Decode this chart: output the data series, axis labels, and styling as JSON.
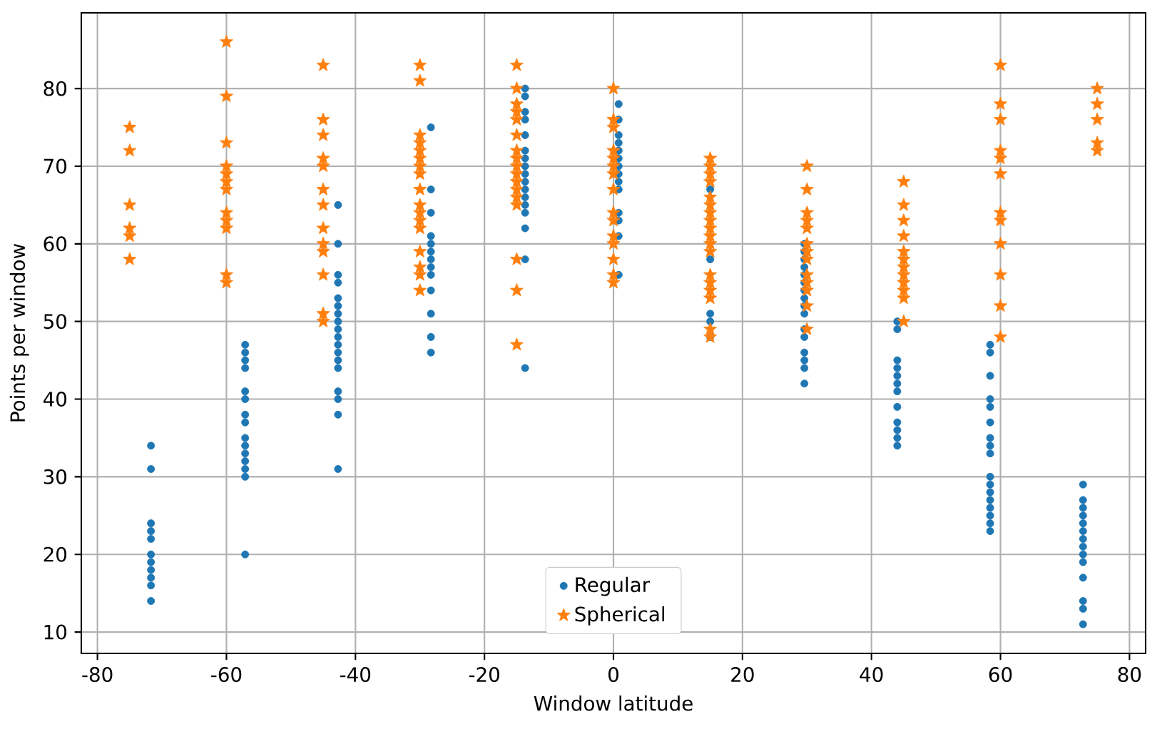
{
  "chart_data": {
    "type": "scatter",
    "xlabel": "Window latitude",
    "ylabel": "Points per window",
    "xlim": [
      -82.5,
      82.5
    ],
    "ylim": [
      7.25,
      89.75
    ],
    "xticks": [
      -80,
      -60,
      -40,
      -20,
      0,
      20,
      40,
      60,
      80
    ],
    "yticks": [
      10,
      20,
      30,
      40,
      50,
      60,
      70,
      80
    ],
    "grid": true,
    "legend": "bottom",
    "series": [
      {
        "name": "Regular",
        "color": "#1f77b4",
        "marker": "circle",
        "x": [
          -71.7,
          -71.7,
          -71.7,
          -71.7,
          -71.7,
          -71.7,
          -71.7,
          -71.7,
          -71.7,
          -71.7,
          -71.7,
          -57.1,
          -57.1,
          -57.1,
          -57.1,
          -57.1,
          -57.1,
          -57.1,
          -57.1,
          -57.1,
          -57.1,
          -57.1,
          -57.1,
          -57.1,
          -57.1,
          -57.1,
          -42.7,
          -42.7,
          -42.7,
          -42.7,
          -42.7,
          -42.7,
          -42.7,
          -42.7,
          -42.7,
          -42.7,
          -42.7,
          -42.7,
          -42.7,
          -42.7,
          -42.7,
          -42.7,
          -42.7,
          -42.7,
          -28.3,
          -28.3,
          -28.3,
          -28.3,
          -28.3,
          -28.3,
          -28.3,
          -28.3,
          -28.3,
          -28.3,
          -28.3,
          -28.3,
          -28.3,
          -13.7,
          -13.7,
          -13.7,
          -13.7,
          -13.7,
          -13.7,
          -13.7,
          -13.7,
          -13.7,
          -13.7,
          -13.7,
          -13.7,
          -13.7,
          -13.7,
          -13.7,
          -13.7,
          -13.7,
          0.8,
          0.8,
          0.8,
          0.8,
          0.8,
          0.8,
          0.8,
          0.8,
          0.8,
          0.8,
          0.8,
          0.8,
          0.8,
          0.8,
          15.0,
          15.0,
          15.0,
          15.0,
          15.0,
          29.6,
          29.6,
          29.6,
          29.6,
          29.6,
          29.6,
          29.6,
          29.6,
          29.6,
          29.6,
          29.6,
          29.6,
          29.6,
          29.6,
          29.6,
          29.6,
          44.0,
          44.0,
          44.0,
          44.0,
          44.0,
          44.0,
          44.0,
          44.0,
          44.0,
          44.0,
          44.0,
          44.0,
          58.4,
          58.4,
          58.4,
          58.4,
          58.4,
          58.4,
          58.4,
          58.4,
          58.4,
          58.4,
          58.4,
          58.4,
          58.4,
          58.4,
          58.4,
          58.4,
          58.4,
          72.8,
          72.8,
          72.8,
          72.8,
          72.8,
          72.8,
          72.8,
          72.8,
          72.8,
          72.8,
          72.8,
          72.8,
          72.8,
          72.8
        ],
        "values": [
          34,
          31,
          24,
          23,
          22,
          20,
          19,
          18,
          17,
          16,
          14,
          47,
          46,
          45,
          44,
          41,
          40,
          38,
          37,
          35,
          34,
          33,
          32,
          31,
          30,
          20,
          65,
          60,
          56,
          55,
          53,
          52,
          51,
          50,
          49,
          48,
          47,
          46,
          45,
          44,
          41,
          40,
          38,
          31,
          75,
          67,
          64,
          61,
          60,
          59,
          58,
          57,
          56,
          54,
          51,
          48,
          46,
          80,
          79,
          77,
          76,
          74,
          72,
          71,
          70,
          69,
          68,
          67,
          66,
          65,
          64,
          62,
          58,
          44,
          78,
          76,
          74,
          73,
          72,
          71,
          70,
          69,
          68,
          67,
          64,
          63,
          61,
          56,
          67,
          58,
          51,
          50,
          48,
          60,
          59,
          58,
          57,
          56,
          55,
          54,
          53,
          52,
          51,
          49,
          48,
          46,
          45,
          44,
          42,
          50,
          49,
          45,
          44,
          43,
          42,
          41,
          39,
          37,
          36,
          35,
          34,
          47,
          46,
          43,
          40,
          39,
          37,
          35,
          34,
          33,
          30,
          29,
          28,
          27,
          26,
          25,
          24,
          23,
          29,
          27,
          26,
          25,
          24,
          23,
          22,
          21,
          20,
          19,
          17,
          14,
          13,
          11
        ]
      },
      {
        "name": "Spherical",
        "color": "#ff7f0e",
        "marker": "star",
        "x": [
          -75,
          -75,
          -75,
          -75,
          -75,
          -75,
          -60,
          -60,
          -60,
          -60,
          -60,
          -60,
          -60,
          -60,
          -60,
          -60,
          -60,
          -60,
          -45,
          -45,
          -45,
          -45,
          -45,
          -45,
          -45,
          -45,
          -45,
          -45,
          -45,
          -45,
          -45,
          -30,
          -30,
          -30,
          -30,
          -30,
          -30,
          -30,
          -30,
          -30,
          -30,
          -30,
          -30,
          -30,
          -30,
          -30,
          -30,
          -30,
          -15,
          -15,
          -15,
          -15,
          -15,
          -15,
          -15,
          -15,
          -15,
          -15,
          -15,
          -15,
          -15,
          -15,
          -15,
          -15,
          -15,
          0,
          0,
          0,
          0,
          0,
          0,
          0,
          0,
          0,
          0,
          0,
          0,
          0,
          0,
          0,
          15,
          15,
          15,
          15,
          15,
          15,
          15,
          15,
          15,
          15,
          15,
          15,
          15,
          15,
          15,
          15,
          15,
          15,
          30,
          30,
          30,
          30,
          30,
          30,
          30,
          30,
          30,
          30,
          30,
          30,
          30,
          45,
          45,
          45,
          45,
          45,
          45,
          45,
          45,
          45,
          45,
          45,
          45,
          60,
          60,
          60,
          60,
          60,
          60,
          60,
          60,
          60,
          60,
          60,
          60,
          75,
          75,
          75,
          75,
          75
        ],
        "values": [
          75,
          72,
          65,
          62,
          61,
          58,
          86,
          79,
          73,
          70,
          69,
          68,
          67,
          64,
          63,
          62,
          56,
          55,
          83,
          76,
          74,
          71,
          70,
          67,
          65,
          62,
          60,
          59,
          56,
          51,
          50,
          83,
          81,
          74,
          73,
          72,
          71,
          70,
          69,
          67,
          65,
          64,
          63,
          62,
          59,
          57,
          56,
          54,
          83,
          80,
          78,
          77,
          76,
          74,
          72,
          71,
          70,
          69,
          68,
          67,
          66,
          65,
          58,
          54,
          47,
          80,
          76,
          75,
          72,
          71,
          70,
          69,
          67,
          64,
          63,
          61,
          60,
          58,
          56,
          55,
          71,
          70,
          69,
          68,
          66,
          65,
          64,
          63,
          62,
          61,
          60,
          59,
          56,
          55,
          54,
          53,
          49,
          48,
          70,
          67,
          64,
          63,
          62,
          60,
          59,
          58,
          56,
          55,
          54,
          52,
          49,
          68,
          65,
          63,
          61,
          59,
          58,
          57,
          56,
          55,
          54,
          53,
          50,
          83,
          78,
          76,
          72,
          71,
          69,
          64,
          63,
          60,
          56,
          52,
          48,
          80,
          78,
          76,
          73,
          72
        ]
      }
    ]
  }
}
